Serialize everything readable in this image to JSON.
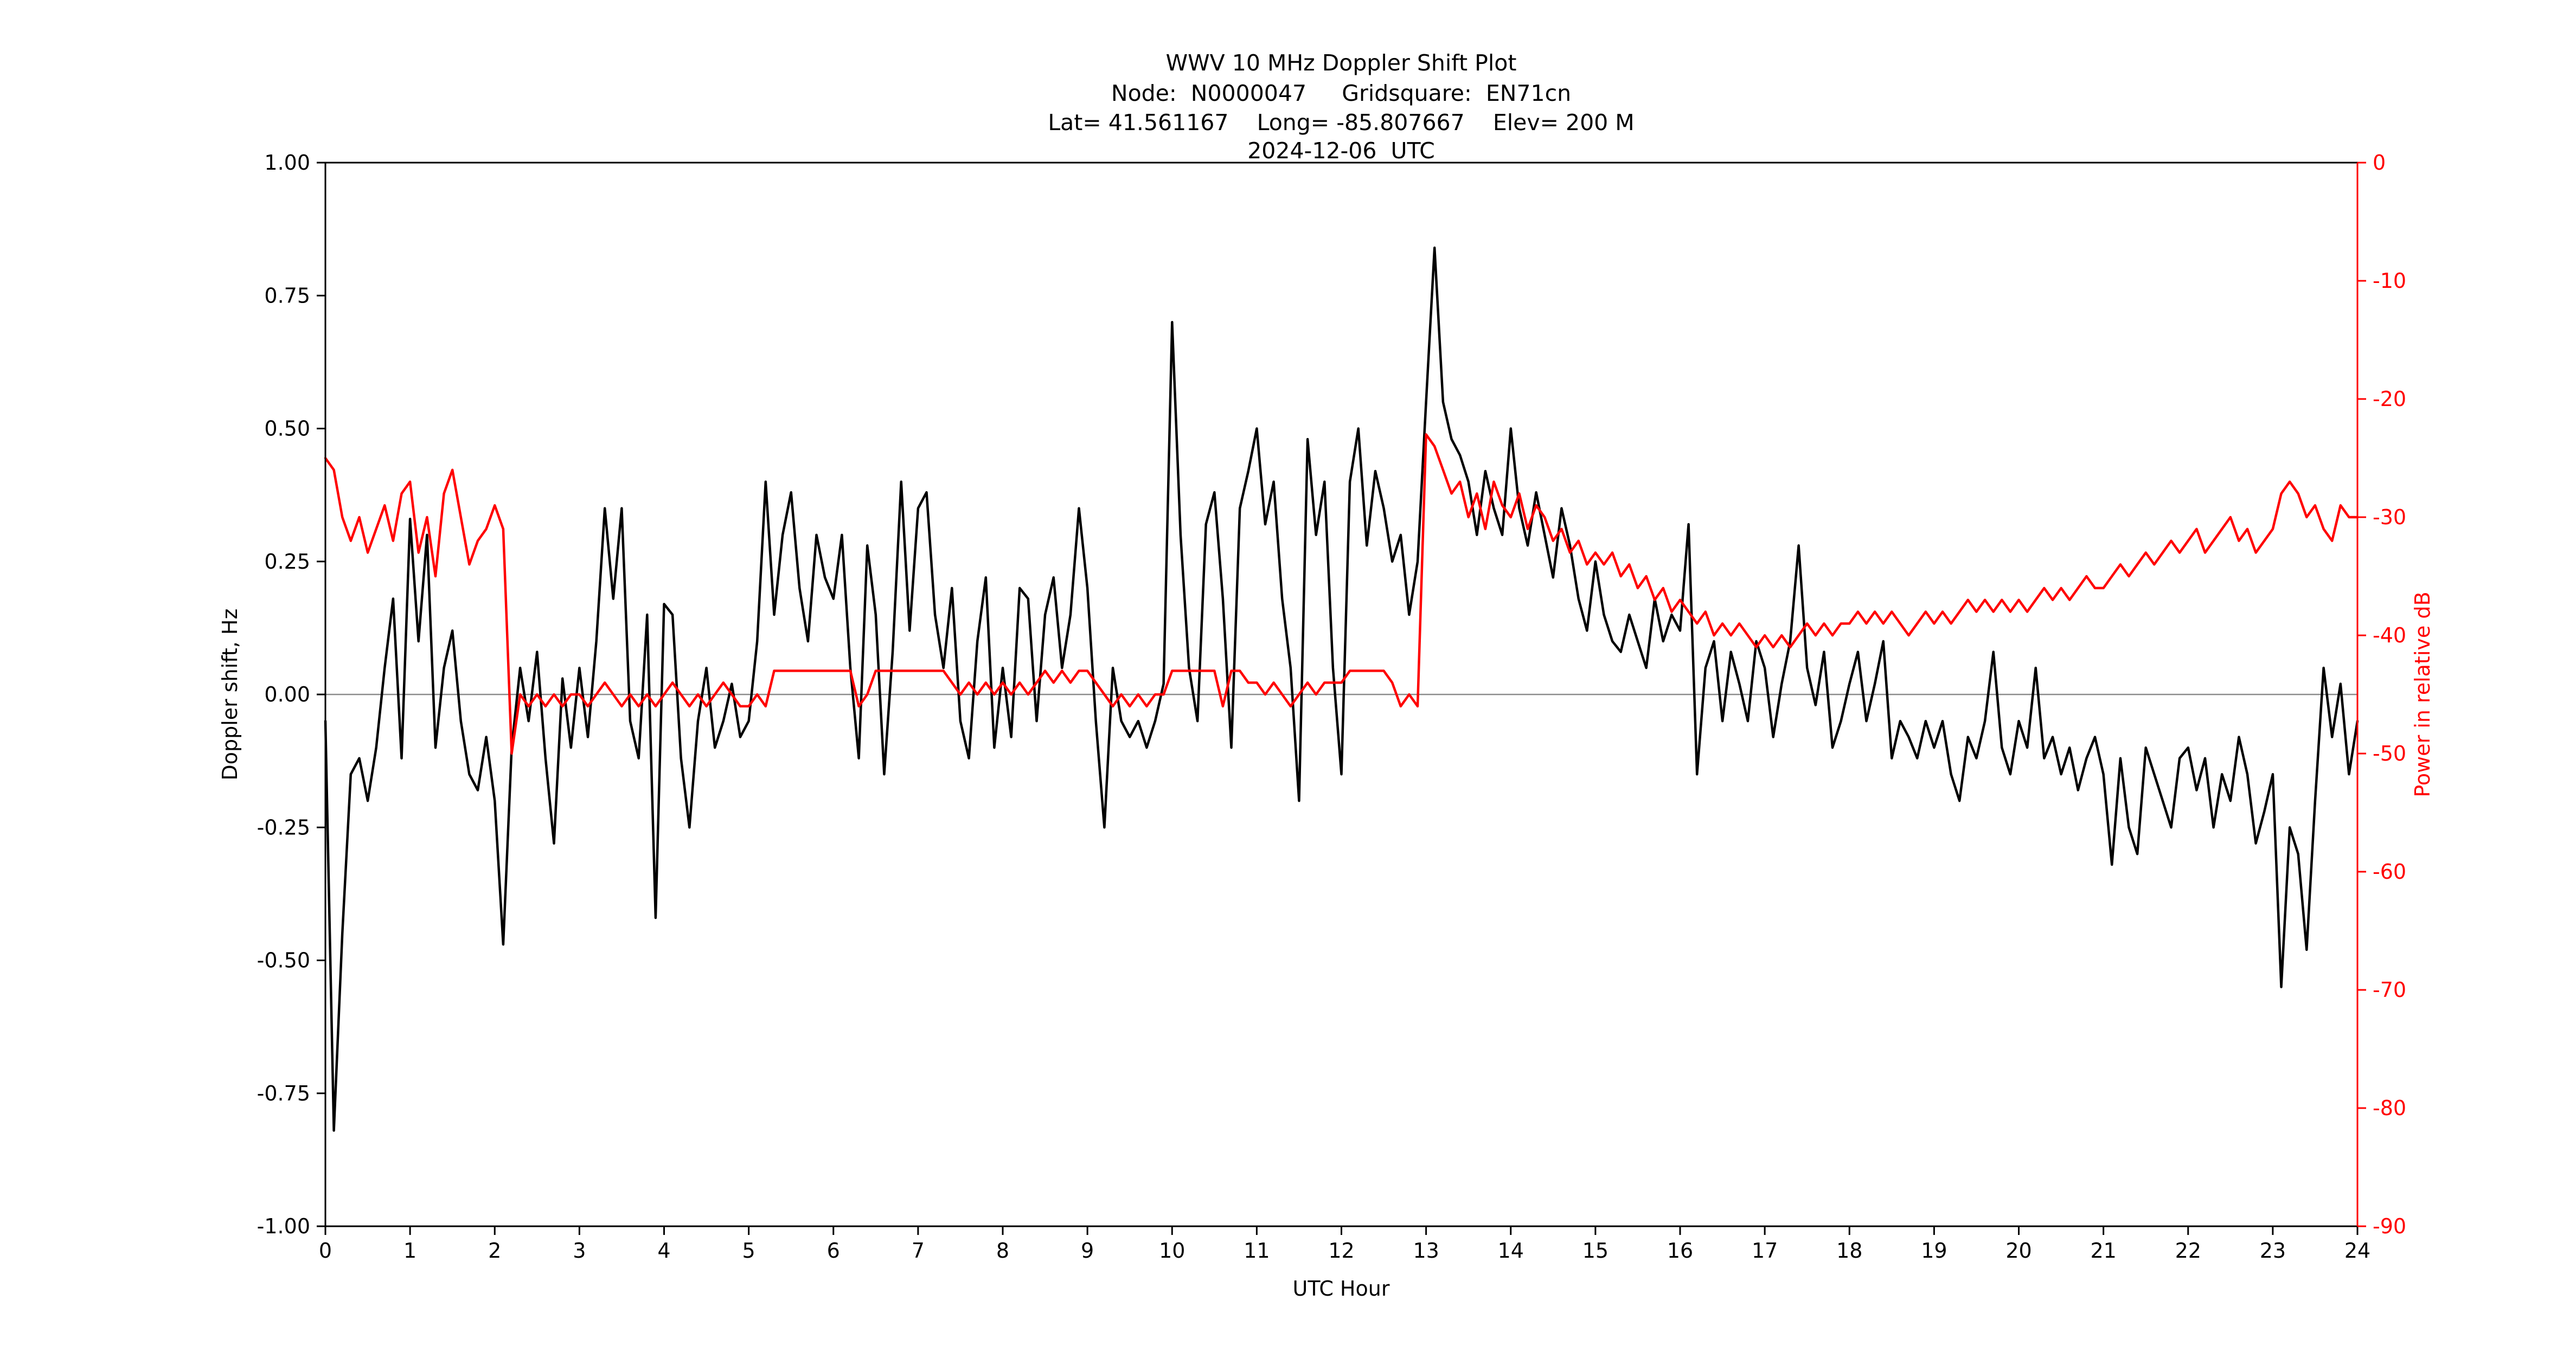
{
  "header": {
    "line1": "WWV 10 MHz Doppler Shift Plot",
    "line2": "Node:  N0000047     Gridsquare:  EN71cn",
    "line3": "Lat= 41.561167    Long= -85.807667    Elev= 200 M",
    "line4": "2024-12-06  UTC"
  },
  "colors": {
    "doppler": "#000000",
    "power": "#ff0000",
    "zero_line": "#8c8c8c",
    "spine": "#000000"
  },
  "chart_data": {
    "type": "line",
    "title": "WWV 10 MHz Doppler Shift Plot",
    "xlabel": "UTC Hour",
    "x_range": [
      0,
      24
    ],
    "x_step": 0.1,
    "x_ticks": [
      0,
      1,
      2,
      3,
      4,
      5,
      6,
      7,
      8,
      9,
      10,
      11,
      12,
      13,
      14,
      15,
      16,
      17,
      18,
      19,
      20,
      21,
      22,
      23,
      24
    ],
    "x_tick_labels": [
      "0",
      "1",
      "2",
      "3",
      "4",
      "5",
      "6",
      "7",
      "8",
      "9",
      "10",
      "11",
      "12",
      "13",
      "14",
      "15",
      "16",
      "17",
      "18",
      "19",
      "20",
      "21",
      "22",
      "23",
      "24"
    ],
    "grid": false,
    "legend": "none",
    "zero_reference_line": 0.0,
    "left_axis": {
      "label": "Doppler shift, Hz",
      "ylim": [
        -1.0,
        1.0
      ],
      "ticks": [
        -1.0,
        -0.75,
        -0.5,
        -0.25,
        0.0,
        0.25,
        0.5,
        0.75,
        1.0
      ],
      "tick_labels": [
        "-1.00",
        "-0.75",
        "-0.50",
        "-0.25",
        "0.00",
        "0.25",
        "0.50",
        "0.75",
        "1.00"
      ]
    },
    "right_axis": {
      "label": "Power in relative dB",
      "ylim": [
        -90,
        0
      ],
      "ticks": [
        0,
        -10,
        -20,
        -30,
        -40,
        -50,
        -60,
        -70,
        -80,
        -90
      ],
      "tick_labels": [
        "0",
        "-10",
        "-20",
        "-30",
        "-40",
        "-50",
        "-60",
        "-70",
        "-80",
        "-90"
      ]
    },
    "series": [
      {
        "name": "Doppler shift (Hz)",
        "axis": "left",
        "color": "#000000",
        "values": [
          -0.05,
          -0.82,
          -0.45,
          -0.15,
          -0.12,
          -0.2,
          -0.1,
          0.05,
          0.18,
          -0.12,
          0.33,
          0.1,
          0.3,
          -0.1,
          0.05,
          0.12,
          -0.05,
          -0.15,
          -0.18,
          -0.08,
          -0.2,
          -0.47,
          -0.1,
          0.05,
          -0.05,
          0.08,
          -0.12,
          -0.28,
          0.03,
          -0.1,
          0.05,
          -0.08,
          0.1,
          0.35,
          0.18,
          0.35,
          -0.05,
          -0.12,
          0.15,
          -0.42,
          0.17,
          0.15,
          -0.12,
          -0.25,
          -0.05,
          0.05,
          -0.1,
          -0.05,
          0.02,
          -0.08,
          -0.05,
          0.1,
          0.4,
          0.15,
          0.3,
          0.38,
          0.2,
          0.1,
          0.3,
          0.22,
          0.18,
          0.3,
          0.05,
          -0.12,
          0.28,
          0.15,
          -0.15,
          0.08,
          0.4,
          0.12,
          0.35,
          0.38,
          0.15,
          0.05,
          0.2,
          -0.05,
          -0.12,
          0.1,
          0.22,
          -0.1,
          0.05,
          -0.08,
          0.2,
          0.18,
          -0.05,
          0.15,
          0.22,
          0.05,
          0.15,
          0.35,
          0.2,
          -0.05,
          -0.25,
          0.05,
          -0.05,
          -0.08,
          -0.05,
          -0.1,
          -0.05,
          0.02,
          0.7,
          0.3,
          0.05,
          -0.05,
          0.32,
          0.38,
          0.18,
          -0.1,
          0.35,
          0.42,
          0.5,
          0.32,
          0.4,
          0.18,
          0.05,
          -0.2,
          0.48,
          0.3,
          0.4,
          0.05,
          -0.15,
          0.4,
          0.5,
          0.28,
          0.42,
          0.35,
          0.25,
          0.3,
          0.15,
          0.25,
          0.55,
          0.84,
          0.55,
          0.48,
          0.45,
          0.4,
          0.3,
          0.42,
          0.35,
          0.3,
          0.5,
          0.35,
          0.28,
          0.38,
          0.3,
          0.22,
          0.35,
          0.28,
          0.18,
          0.12,
          0.25,
          0.15,
          0.1,
          0.08,
          0.15,
          0.1,
          0.05,
          0.18,
          0.1,
          0.15,
          0.12,
          0.32,
          -0.15,
          0.05,
          0.1,
          -0.05,
          0.08,
          0.02,
          -0.05,
          0.1,
          0.05,
          -0.08,
          0.02,
          0.1,
          0.28,
          0.05,
          -0.02,
          0.08,
          -0.1,
          -0.05,
          0.02,
          0.08,
          -0.05,
          0.02,
          0.1,
          -0.12,
          -0.05,
          -0.08,
          -0.12,
          -0.05,
          -0.1,
          -0.05,
          -0.15,
          -0.2,
          -0.08,
          -0.12,
          -0.05,
          0.08,
          -0.1,
          -0.15,
          -0.05,
          -0.1,
          0.05,
          -0.12,
          -0.08,
          -0.15,
          -0.1,
          -0.18,
          -0.12,
          -0.08,
          -0.15,
          -0.32,
          -0.12,
          -0.25,
          -0.3,
          -0.1,
          -0.15,
          -0.2,
          -0.25,
          -0.12,
          -0.1,
          -0.18,
          -0.12,
          -0.25,
          -0.15,
          -0.2,
          -0.08,
          -0.15,
          -0.28,
          -0.22,
          -0.15,
          -0.55,
          -0.25,
          -0.3,
          -0.48,
          -0.2,
          0.05,
          -0.08,
          0.02,
          -0.15,
          -0.05
        ]
      },
      {
        "name": "Power (relative dB)",
        "axis": "right",
        "color": "#ff0000",
        "values": [
          -25,
          -26,
          -30,
          -32,
          -30,
          -33,
          -31,
          -29,
          -32,
          -28,
          -27,
          -33,
          -30,
          -35,
          -28,
          -26,
          -30,
          -34,
          -32,
          -31,
          -29,
          -31,
          -50,
          -45,
          -46,
          -45,
          -46,
          -45,
          -46,
          -45,
          -45,
          -46,
          -45,
          -44,
          -45,
          -46,
          -45,
          -46,
          -45,
          -46,
          -45,
          -44,
          -45,
          -46,
          -45,
          -46,
          -45,
          -44,
          -45,
          -46,
          -46,
          -45,
          -46,
          -43,
          -43,
          -43,
          -43,
          -43,
          -43,
          -43,
          -43,
          -43,
          -43,
          -46,
          -45,
          -43,
          -43,
          -43,
          -43,
          -43,
          -43,
          -43,
          -43,
          -43,
          -44,
          -45,
          -44,
          -45,
          -44,
          -45,
          -44,
          -45,
          -44,
          -45,
          -44,
          -43,
          -44,
          -43,
          -44,
          -43,
          -43,
          -44,
          -45,
          -46,
          -45,
          -46,
          -45,
          -46,
          -45,
          -45,
          -43,
          -43,
          -43,
          -43,
          -43,
          -43,
          -46,
          -43,
          -43,
          -44,
          -44,
          -45,
          -44,
          -45,
          -46,
          -45,
          -44,
          -45,
          -44,
          -44,
          -44,
          -43,
          -43,
          -43,
          -43,
          -43,
          -44,
          -46,
          -45,
          -46,
          -23,
          -24,
          -26,
          -28,
          -27,
          -30,
          -28,
          -31,
          -27,
          -29,
          -30,
          -28,
          -31,
          -29,
          -30,
          -32,
          -31,
          -33,
          -32,
          -34,
          -33,
          -34,
          -33,
          -35,
          -34,
          -36,
          -35,
          -37,
          -36,
          -38,
          -37,
          -38,
          -39,
          -38,
          -40,
          -39,
          -40,
          -39,
          -40,
          -41,
          -40,
          -41,
          -40,
          -41,
          -40,
          -39,
          -40,
          -39,
          -40,
          -39,
          -39,
          -38,
          -39,
          -38,
          -39,
          -38,
          -39,
          -40,
          -39,
          -38,
          -39,
          -38,
          -39,
          -38,
          -37,
          -38,
          -37,
          -38,
          -37,
          -38,
          -37,
          -38,
          -37,
          -36,
          -37,
          -36,
          -37,
          -36,
          -35,
          -36,
          -36,
          -35,
          -34,
          -35,
          -34,
          -33,
          -34,
          -33,
          -32,
          -33,
          -32,
          -31,
          -33,
          -32,
          -31,
          -30,
          -32,
          -31,
          -33,
          -32,
          -31,
          -28,
          -27,
          -28,
          -30,
          -29,
          -31,
          -32,
          -29,
          -30,
          -30
        ]
      }
    ]
  }
}
